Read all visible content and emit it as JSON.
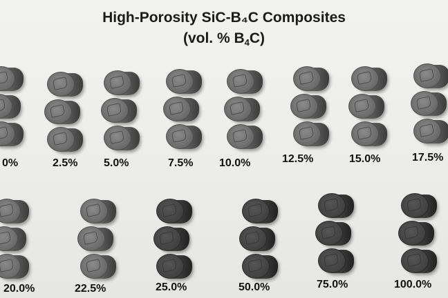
{
  "title": {
    "line1": "High-Porosity SiC-B₄C Composites",
    "line2_prefix": "(vol. % B",
    "line2_sub": "4",
    "line2_suffix": "C)"
  },
  "samples": [
    {
      "label": "0%"
    },
    {
      "label": "2.5%"
    },
    {
      "label": "5.0%"
    },
    {
      "label": "7.5%"
    },
    {
      "label": "10.0%"
    },
    {
      "label": "12.5%"
    },
    {
      "label": "15.0%"
    },
    {
      "label": "17.5%"
    },
    {
      "label": "20.0%"
    },
    {
      "label": "22.5%"
    },
    {
      "label": "25.0%"
    },
    {
      "label": "50.0%"
    },
    {
      "label": "75.0%"
    },
    {
      "label": "100.0%"
    }
  ]
}
